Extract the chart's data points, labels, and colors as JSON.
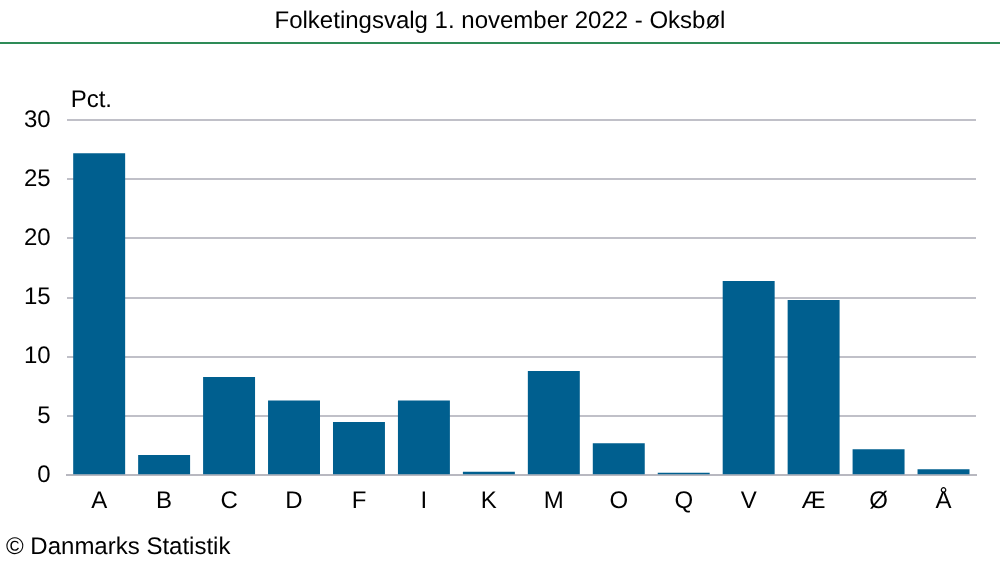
{
  "chart_data": {
    "type": "bar",
    "title": "Folketingsvalg 1. november 2022 - Oksbøl",
    "ylabel": "Pct.",
    "categories": [
      "A",
      "B",
      "C",
      "D",
      "F",
      "I",
      "K",
      "M",
      "O",
      "Q",
      "V",
      "Æ",
      "Ø",
      "Å"
    ],
    "values": [
      27.2,
      1.7,
      8.3,
      6.3,
      4.5,
      6.3,
      0.3,
      8.8,
      2.7,
      0.2,
      16.4,
      14.8,
      2.2,
      0.5
    ],
    "color": "#005f8f",
    "ylim": [
      0,
      30
    ],
    "yticks": [
      0,
      5,
      10,
      15,
      20,
      25,
      30
    ],
    "grid": "y",
    "legend": false,
    "annotations": [
      "© Danmarks Statistik"
    ]
  }
}
